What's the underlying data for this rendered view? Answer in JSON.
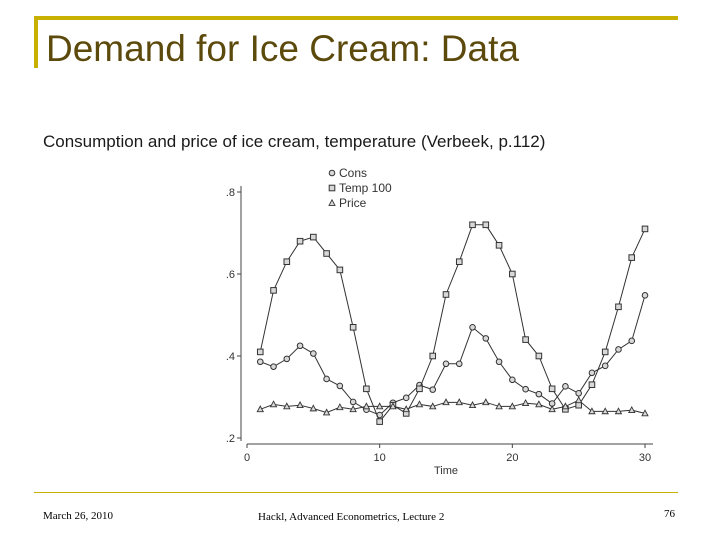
{
  "slide": {
    "title": "Demand for Ice Cream: Data",
    "subtitle": "Consumption and price of ice cream, temperature (Verbeek, p.112)"
  },
  "footer": {
    "date": "March 26, 2010",
    "center": "Hackl, Advanced Econometrics, Lecture 2",
    "page": "76"
  },
  "colors": {
    "accent": "#c8b000",
    "title": "#5c4a0c",
    "series": "#333333"
  },
  "chart_data": {
    "type": "line",
    "xlabel": "Time",
    "ylabel": "",
    "xlim": [
      0,
      30
    ],
    "ylim": [
      0.2,
      0.8
    ],
    "xticks": [
      0,
      10,
      20,
      30
    ],
    "xtick_labels": [
      "0",
      "10",
      "20",
      "30"
    ],
    "yticks": [
      0.2,
      0.4,
      0.6,
      0.8
    ],
    "ytick_labels": [
      ".2",
      ".4",
      ".6",
      ".8"
    ],
    "legend_position": "top",
    "grid": false,
    "x": [
      1,
      2,
      3,
      4,
      5,
      6,
      7,
      8,
      9,
      10,
      11,
      12,
      13,
      14,
      15,
      16,
      17,
      18,
      19,
      20,
      21,
      22,
      23,
      24,
      25,
      26,
      27,
      28,
      29,
      30
    ],
    "series": [
      {
        "name": "Cons",
        "marker": "circle",
        "values": [
          0.386,
          0.374,
          0.393,
          0.425,
          0.406,
          0.344,
          0.327,
          0.288,
          0.269,
          0.256,
          0.286,
          0.298,
          0.329,
          0.318,
          0.381,
          0.381,
          0.47,
          0.443,
          0.386,
          0.342,
          0.319,
          0.307,
          0.284,
          0.326,
          0.309,
          0.359,
          0.376,
          0.416,
          0.437,
          0.548
        ]
      },
      {
        "name": "Temp 100",
        "marker": "square",
        "values": [
          0.41,
          0.56,
          0.63,
          0.68,
          0.69,
          0.65,
          0.61,
          0.47,
          0.32,
          0.24,
          0.28,
          0.26,
          0.32,
          0.4,
          0.55,
          0.63,
          0.72,
          0.72,
          0.67,
          0.6,
          0.44,
          0.4,
          0.32,
          0.27,
          0.28,
          0.33,
          0.41,
          0.52,
          0.64,
          0.71
        ]
      },
      {
        "name": "Price",
        "marker": "triangle",
        "values": [
          0.27,
          0.282,
          0.277,
          0.28,
          0.272,
          0.262,
          0.275,
          0.27,
          0.277,
          0.277,
          0.277,
          0.27,
          0.282,
          0.277,
          0.287,
          0.287,
          0.28,
          0.287,
          0.277,
          0.277,
          0.285,
          0.282,
          0.27,
          0.277,
          0.292,
          0.265,
          0.265,
          0.265,
          0.268,
          0.26
        ]
      }
    ]
  }
}
